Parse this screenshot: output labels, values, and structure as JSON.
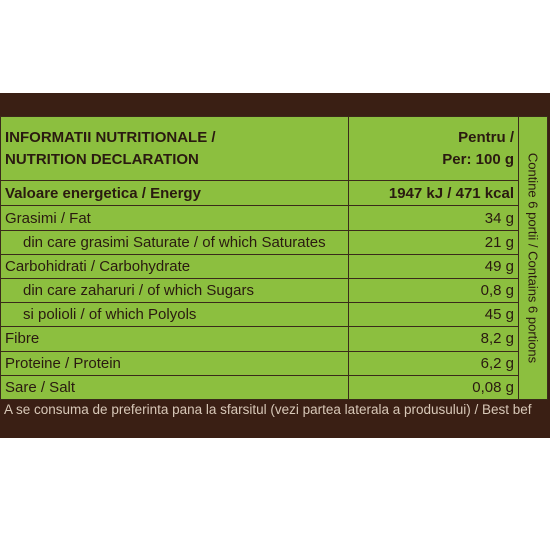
{
  "header": {
    "title_line1": "INFORMATII NUTRITIONALE /",
    "title_line2": "NUTRITION  DECLARATION",
    "per_line1": "Pentru /",
    "per_line2": "Per: 100 g"
  },
  "energy": {
    "label": "Valoare energetica / Energy",
    "value": "1947 kJ / 471 kcal"
  },
  "rows": [
    {
      "label": "Grasimi / Fat",
      "value": "34 g"
    },
    {
      "label": "din care grasimi Saturate / of which Saturates",
      "value": "21 g"
    },
    {
      "label": "Carbohidrati / Carbohydrate",
      "value": "49 g"
    },
    {
      "label": "din care zaharuri  / of which Sugars",
      "value": "0,8 g"
    },
    {
      "label": "si polioli / of which Polyols",
      "value": "45 g"
    },
    {
      "label": "Fibre",
      "value": "8,2 g"
    },
    {
      "label": "Proteine / Protein",
      "value": "6,2 g"
    },
    {
      "label": "Sare / Salt",
      "value": "0,08 g"
    }
  ],
  "side_note": "Contine 6 portii / Contains 6 portions",
  "footer_text": "A se consuma de preferinta pana la sfarsitul (vezi partea laterala a produsului) / Best bef",
  "colors": {
    "panel": "#8cbf3f",
    "band": "#3a1f14",
    "text": "#2a1a10"
  }
}
